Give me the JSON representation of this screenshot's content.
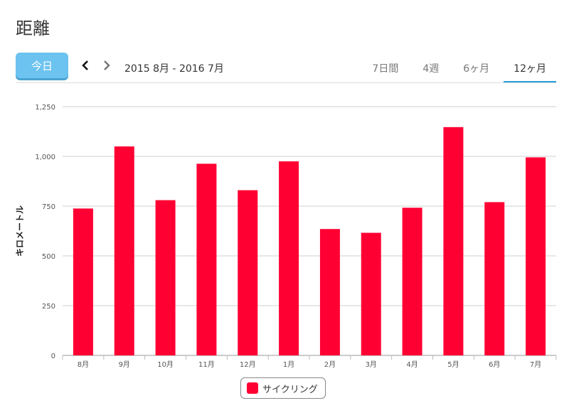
{
  "header": {
    "title": "距離"
  },
  "toolbar": {
    "today_label": "今日",
    "prev_icon": "chevron-left-icon",
    "next_icon": "chevron-right-icon",
    "date_range": "2015 8月 - 2016 7月",
    "tabs": [
      {
        "label": "7日間",
        "active": false
      },
      {
        "label": "4週",
        "active": false
      },
      {
        "label": "6ヶ月",
        "active": false
      },
      {
        "label": "12ヶ月",
        "active": true
      }
    ]
  },
  "colors": {
    "bar": "#ff0033",
    "today_button": "#6cc3f0",
    "active_tab": "#2aa0d8"
  },
  "chart_data": {
    "type": "bar",
    "categories": [
      "8月",
      "9月",
      "10月",
      "11月",
      "12月",
      "1月",
      "2月",
      "3月",
      "4月",
      "5月",
      "6月",
      "7月"
    ],
    "series": [
      {
        "name": "サイクリング",
        "values": [
          738,
          1050,
          780,
          963,
          830,
          975,
          635,
          616,
          742,
          1147,
          770,
          995
        ]
      }
    ],
    "ylabel": "キロメートル",
    "xlabel": "",
    "ylim": [
      0,
      1250
    ],
    "yticks": [
      0,
      250,
      500,
      750,
      1000,
      1250
    ],
    "ytick_labels": [
      "0",
      "250",
      "500",
      "750",
      "1,000",
      "1,250"
    ],
    "grid": true,
    "legend_position": "bottom-center"
  }
}
